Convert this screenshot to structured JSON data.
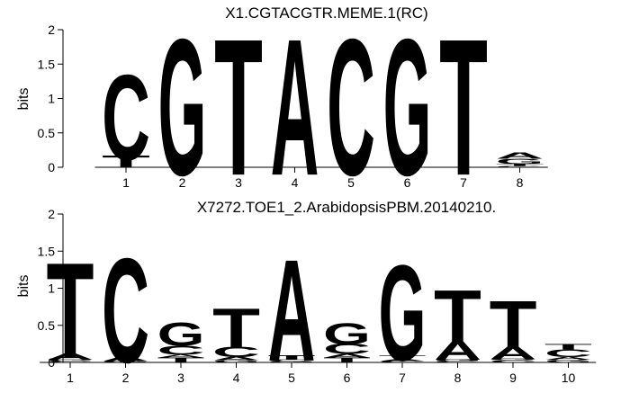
{
  "chart_data": [
    {
      "type": "sequence-logo",
      "title": "X1.CGTACGTR.MEME.1(RC)",
      "xlabel": "",
      "ylabel": "bits",
      "ylim": [
        0,
        2
      ],
      "yticks": [
        "0",
        "0.5",
        "1",
        "1.5",
        "2"
      ],
      "positions": [
        "1",
        "2",
        "3",
        "4",
        "5",
        "6",
        "7",
        "8"
      ],
      "letter_colors": {
        "A": "#84d238",
        "C": "#0a10cf",
        "G": "#d3c037",
        "T": "#b1001f"
      },
      "stacks": [
        [
          {
            "letter": "T",
            "bits": 0.18
          },
          {
            "letter": "C",
            "bits": 1.25
          }
        ],
        [
          {
            "letter": "G",
            "bits": 2.0
          }
        ],
        [
          {
            "letter": "T",
            "bits": 2.0
          }
        ],
        [
          {
            "letter": "A",
            "bits": 2.0
          }
        ],
        [
          {
            "letter": "C",
            "bits": 2.0
          }
        ],
        [
          {
            "letter": "G",
            "bits": 2.0
          }
        ],
        [
          {
            "letter": "T",
            "bits": 2.0
          }
        ],
        [
          {
            "letter": "C",
            "bits": 0.02
          },
          {
            "letter": "T",
            "bits": 0.03
          },
          {
            "letter": "G",
            "bits": 0.08
          },
          {
            "letter": "A",
            "bits": 0.09
          }
        ]
      ]
    },
    {
      "type": "sequence-logo",
      "title": "X7272.TOE1_2.ArabidopsisPBM.20140210.",
      "xlabel": "",
      "ylabel": "bits",
      "ylim": [
        0,
        2
      ],
      "yticks": [
        "0",
        "0.5",
        "1",
        "1.5",
        "2"
      ],
      "positions": [
        "1",
        "2",
        "3",
        "4",
        "5",
        "6",
        "7",
        "8",
        "9",
        "10"
      ],
      "letter_colors": {
        "A": "#84d238",
        "C": "#0a10cf",
        "G": "#d3c037",
        "T": "#b1001f"
      },
      "stacks": [
        [
          {
            "letter": "C",
            "bits": 0.02
          },
          {
            "letter": "G",
            "bits": 0.02
          },
          {
            "letter": "A",
            "bits": 0.09
          },
          {
            "letter": "T",
            "bits": 1.3
          }
        ],
        [
          {
            "letter": "G",
            "bits": 0.02
          },
          {
            "letter": "A",
            "bits": 0.06
          },
          {
            "letter": "C",
            "bits": 1.42
          }
        ],
        [
          {
            "letter": "T",
            "bits": 0.07
          },
          {
            "letter": "A",
            "bits": 0.04
          },
          {
            "letter": "C",
            "bits": 0.13
          },
          {
            "letter": "G",
            "bits": 0.32
          }
        ],
        [
          {
            "letter": "G",
            "bits": 0.03
          },
          {
            "letter": "A",
            "bits": 0.05
          },
          {
            "letter": "C",
            "bits": 0.14
          },
          {
            "letter": "T",
            "bits": 0.55
          }
        ],
        [
          {
            "letter": "G",
            "bits": 0.02
          },
          {
            "letter": "C",
            "bits": 0.02
          },
          {
            "letter": "T",
            "bits": 0.06
          },
          {
            "letter": "A",
            "bits": 1.38
          }
        ],
        [
          {
            "letter": "T",
            "bits": 0.07
          },
          {
            "letter": "A",
            "bits": 0.05
          },
          {
            "letter": "C",
            "bits": 0.14
          },
          {
            "letter": "G",
            "bits": 0.29
          }
        ],
        [
          {
            "letter": "C",
            "bits": 0.02
          },
          {
            "letter": "A",
            "bits": 0.03
          },
          {
            "letter": "T",
            "bits": 0.05
          },
          {
            "letter": "G",
            "bits": 1.3
          }
        ],
        [
          {
            "letter": "C",
            "bits": 0.02
          },
          {
            "letter": "G",
            "bits": 0.03
          },
          {
            "letter": "A",
            "bits": 0.25
          },
          {
            "letter": "T",
            "bits": 0.72
          }
        ],
        [
          {
            "letter": "C",
            "bits": 0.03
          },
          {
            "letter": "G",
            "bits": 0.02
          },
          {
            "letter": "A",
            "bits": 0.17
          },
          {
            "letter": "T",
            "bits": 0.65
          }
        ],
        [
          {
            "letter": "G",
            "bits": 0.04
          },
          {
            "letter": "A",
            "bits": 0.04
          },
          {
            "letter": "C",
            "bits": 0.1
          },
          {
            "letter": "T",
            "bits": 0.07
          }
        ]
      ]
    }
  ]
}
